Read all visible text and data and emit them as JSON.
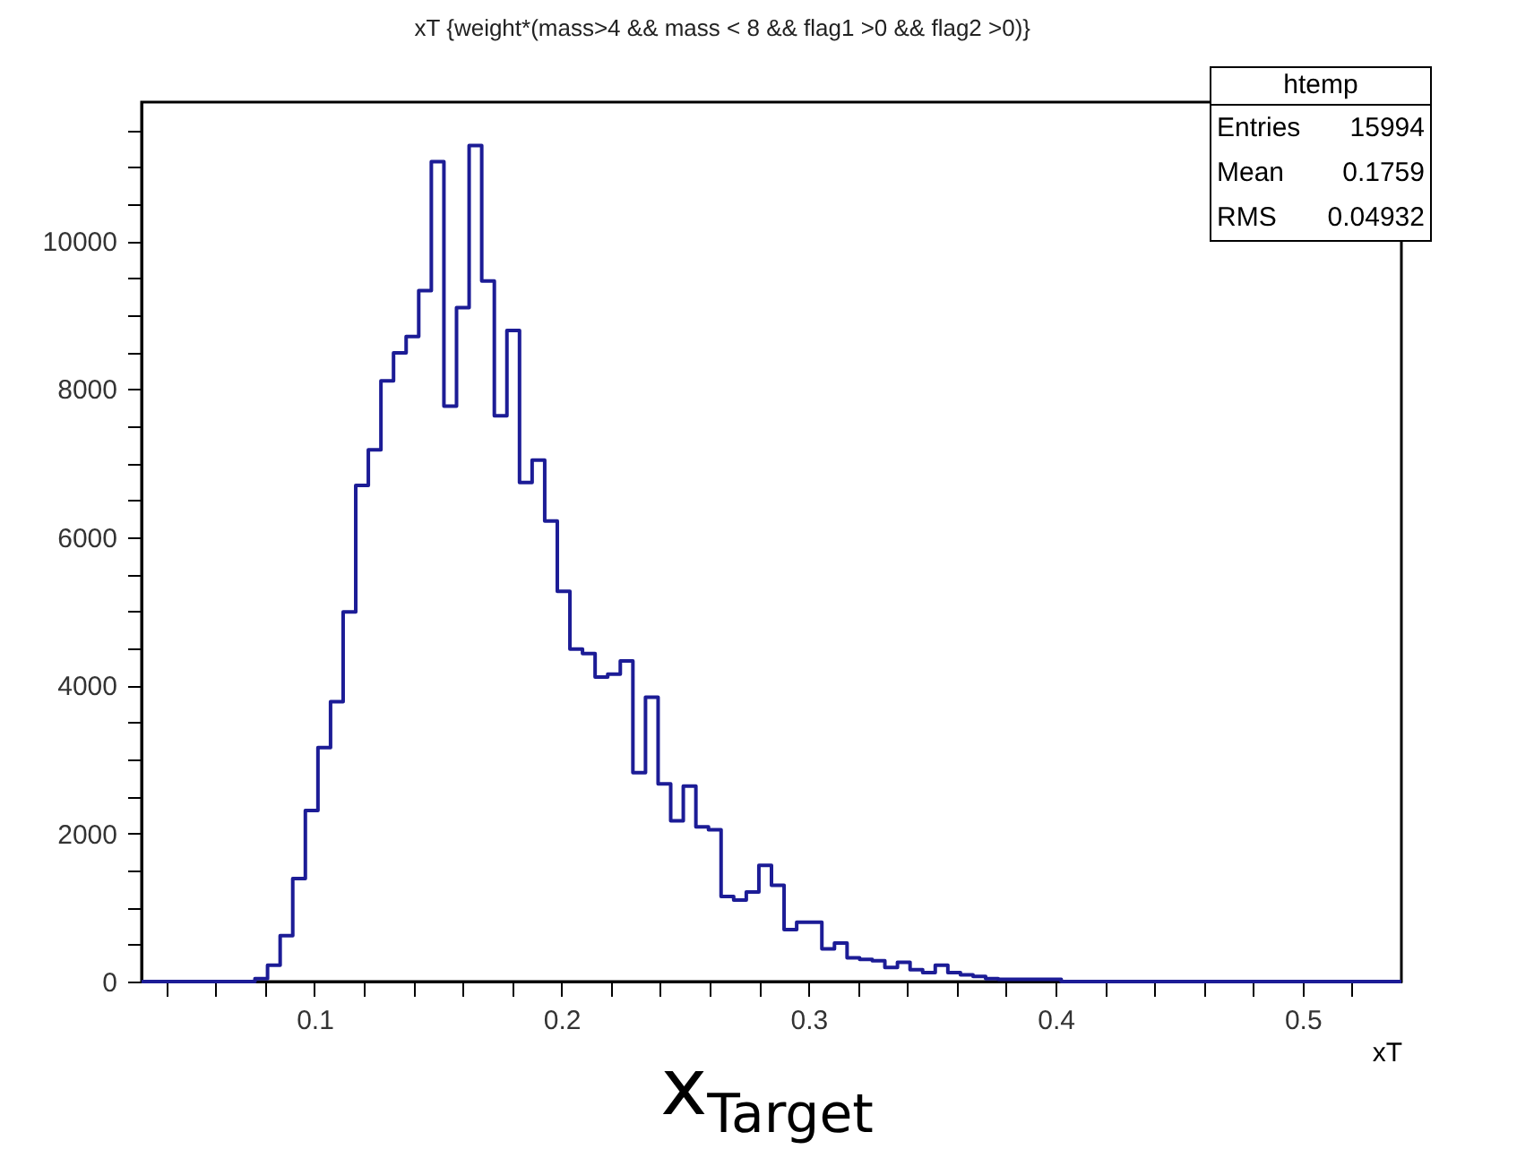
{
  "chart_data": {
    "type": "histogram",
    "title": "xT {weight*(mass>4 && mass < 8 && flag1 >0 && flag2 >0)}",
    "xlabel": "xT",
    "annotations": [
      "htemp",
      "Entries",
      "15994",
      "Mean",
      "0.1759",
      "RMS",
      "0.04932",
      "x$_{Target}$"
    ],
    "bins": [
      0.03,
      0.0351,
      0.0402,
      0.0453,
      0.0504,
      0.0555,
      0.0606,
      0.0657,
      0.0708,
      0.0759,
      0.081,
      0.0861,
      0.0912,
      0.0963,
      0.1014,
      0.1065,
      0.1116,
      0.1167,
      0.1218,
      0.1269,
      0.132,
      0.1371,
      0.1422,
      0.1473,
      0.1524,
      0.1575,
      0.1626,
      0.1677,
      0.1728,
      0.1779,
      0.183,
      0.1881,
      0.1932,
      0.1983,
      0.2034,
      0.2085,
      0.2136,
      0.2187,
      0.2238,
      0.2289,
      0.234,
      0.2391,
      0.2442,
      0.2493,
      0.2544,
      0.2595,
      0.2646,
      0.2697,
      0.2748,
      0.2799,
      0.285,
      0.2901,
      0.2952,
      0.3003,
      0.3054,
      0.3105,
      0.3156,
      0.3207,
      0.3258,
      0.3309,
      0.336,
      0.3411,
      0.3462,
      0.3513,
      0.3564,
      0.3615,
      0.3666,
      0.3717,
      0.3768,
      0.3819,
      0.387,
      0.3921,
      0.3972,
      0.4023,
      0.4074,
      0.4125,
      0.4176,
      0.4227,
      0.4278,
      0.4329,
      0.438,
      0.4431,
      0.4482,
      0.4533,
      0.4584,
      0.4635,
      0.4686,
      0.4737,
      0.4788,
      0.4839,
      0.489,
      0.4941,
      0.4992,
      0.5043,
      0.5094,
      0.5145,
      0.5196,
      0.5247,
      0.5298,
      0.5349,
      0.54
    ],
    "values": [
      0,
      0,
      0,
      0,
      0,
      0,
      0,
      0,
      0,
      40,
      220,
      620,
      1390,
      2310,
      3160,
      3780,
      4990,
      6700,
      7180,
      8110,
      8490,
      8710,
      9330,
      11070,
      7770,
      9100,
      11290,
      9460,
      7640,
      8790,
      6740,
      7040,
      6220,
      5270,
      4490,
      4430,
      4110,
      4150,
      4330,
      2820,
      3840,
      2670,
      2170,
      2640,
      2090,
      2050,
      1150,
      1100,
      1210,
      1570,
      1300,
      700,
      800,
      800,
      440,
      520,
      320,
      300,
      280,
      190,
      260,
      160,
      120,
      220,
      120,
      90,
      70,
      40,
      30,
      30,
      30,
      30,
      30,
      0,
      0,
      0,
      0,
      0,
      0,
      0,
      0,
      0,
      0,
      0,
      0,
      0,
      0,
      0,
      0,
      0,
      0,
      0,
      0,
      0,
      0,
      0,
      0,
      0,
      0,
      0
    ],
    "color": "#1c1c96",
    "xlim": [
      0.03,
      0.54
    ],
    "ylim": [
      0,
      11875
    ],
    "xticks": [
      {
        "value": 0.04,
        "label": null
      },
      {
        "value": 0.06,
        "label": null
      },
      {
        "value": 0.08,
        "label": null
      },
      0.1,
      {
        "value": 0.12,
        "label": null
      },
      {
        "value": 0.14,
        "label": null
      },
      {
        "value": 0.16,
        "label": null
      },
      {
        "value": 0.18,
        "label": null
      },
      0.2,
      {
        "value": 0.22,
        "label": null
      },
      {
        "value": 0.24,
        "label": null
      },
      {
        "value": 0.26,
        "label": null
      },
      {
        "value": 0.28,
        "label": null
      },
      0.3,
      {
        "value": 0.32,
        "label": null
      },
      {
        "value": 0.34,
        "label": null
      },
      {
        "value": 0.36,
        "label": null
      },
      {
        "value": 0.38,
        "label": null
      },
      0.4,
      {
        "value": 0.42,
        "label": null
      },
      {
        "value": 0.44,
        "label": null
      },
      {
        "value": 0.46,
        "label": null
      },
      {
        "value": 0.48,
        "label": null
      },
      0.5,
      {
        "value": 0.52,
        "label": null
      }
    ],
    "yticks": [
      0,
      {
        "value": 500,
        "label": null
      },
      {
        "value": 1000,
        "label": null
      },
      {
        "value": 1500,
        "label": null
      },
      2000,
      {
        "value": 2500,
        "label": null
      },
      {
        "value": 3000,
        "label": null
      },
      {
        "value": 3500,
        "label": null
      },
      4000,
      {
        "value": 4500,
        "label": null
      },
      {
        "value": 5000,
        "label": null
      },
      {
        "value": 5500,
        "label": null
      },
      6000,
      {
        "value": 6500,
        "label": null
      },
      {
        "value": 7000,
        "label": null
      },
      {
        "value": 7500,
        "label": null
      },
      8000,
      {
        "value": 8500,
        "label": null
      },
      {
        "value": 9000,
        "label": null
      },
      {
        "value": 9500,
        "label": null
      },
      10000,
      {
        "value": 10500,
        "label": null
      },
      {
        "value": 11000,
        "label": null
      },
      {
        "value": 11500,
        "label": null
      }
    ],
    "grid": false
  }
}
